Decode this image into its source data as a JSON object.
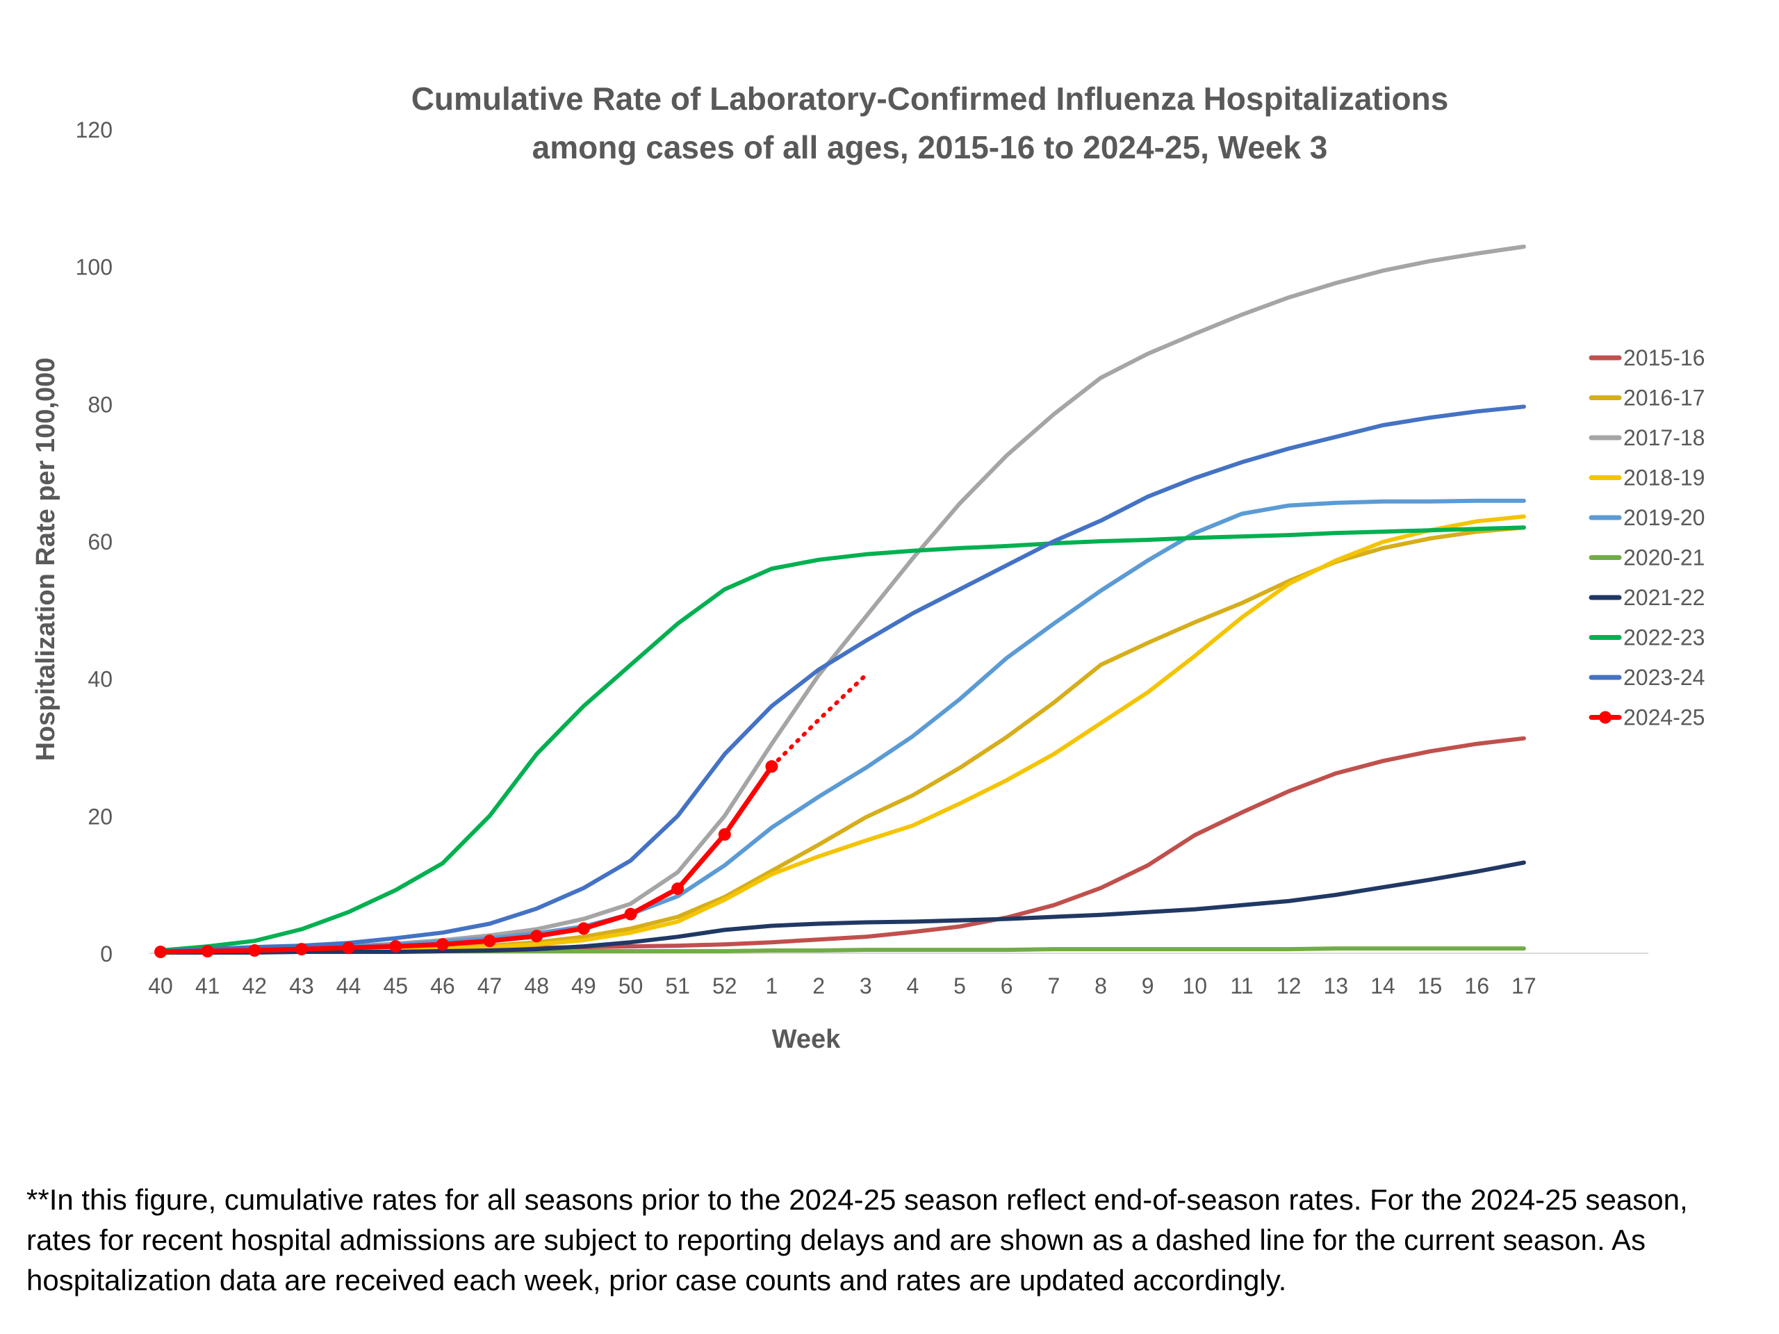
{
  "footnote": "**In this figure, cumulative rates for all seasons prior to the 2024-25 season reflect end-of-season rates. For the 2024-25 season, rates for recent hospital admissions are subject to reporting delays and are shown as a dashed line for the current season. As hospitalization data are received each week, prior case counts and rates are updated accordingly.",
  "chart_data": {
    "type": "line",
    "title": [
      "Cumulative Rate of Laboratory-Confirmed Influenza Hospitalizations",
      "among cases of all ages, 2015-16 to 2024-25, Week 3"
    ],
    "xlabel": "Week",
    "ylabel": "Hospitalization Rate per 100,000",
    "ylim": [
      0,
      120
    ],
    "yticks": [
      0,
      20,
      40,
      60,
      80,
      100,
      120
    ],
    "grid": false,
    "legend_position": "right",
    "categories": [
      "40",
      "41",
      "42",
      "43",
      "44",
      "45",
      "46",
      "47",
      "48",
      "49",
      "50",
      "51",
      "52",
      "1",
      "2",
      "3",
      "4",
      "5",
      "6",
      "7",
      "8",
      "9",
      "10",
      "11",
      "12",
      "13",
      "14",
      "15",
      "16",
      "17"
    ],
    "series": [
      {
        "name": "2015-16",
        "color": "#c0504d",
        "values": [
          0.2,
          0.3,
          0.4,
          0.4,
          0.5,
          0.6,
          0.6,
          0.7,
          0.8,
          0.9,
          1.0,
          1.1,
          1.3,
          1.6,
          2.0,
          2.4,
          3.1,
          3.9,
          5.2,
          7.0,
          9.5,
          12.8,
          17.2,
          20.5,
          23.6,
          26.2,
          28.0,
          29.4,
          30.5,
          31.3
        ]
      },
      {
        "name": "2016-17",
        "color": "#d6ae1b",
        "values": [
          0.2,
          0.3,
          0.4,
          0.5,
          0.6,
          0.7,
          0.9,
          1.1,
          1.6,
          2.4,
          3.6,
          5.3,
          8.2,
          12.0,
          15.8,
          19.8,
          23.0,
          27.0,
          31.5,
          36.5,
          42.0,
          45.2,
          48.2,
          51.0,
          54.2,
          57.0,
          59.0,
          60.4,
          61.4,
          62.0
        ]
      },
      {
        "name": "2017-18",
        "color": "#a5a5a5",
        "values": [
          0.2,
          0.3,
          0.5,
          0.7,
          1.0,
          1.4,
          1.9,
          2.6,
          3.5,
          5.0,
          7.2,
          11.8,
          20.0,
          30.5,
          40.5,
          49.0,
          57.5,
          65.5,
          72.5,
          78.5,
          83.8,
          87.3,
          90.2,
          93.0,
          95.5,
          97.6,
          99.4,
          100.8,
          101.9,
          102.9
        ]
      },
      {
        "name": "2018-19",
        "color": "#f5c400",
        "values": [
          0.2,
          0.3,
          0.4,
          0.4,
          0.5,
          0.6,
          0.7,
          0.9,
          1.3,
          1.9,
          3.0,
          4.6,
          7.8,
          11.5,
          14.1,
          16.4,
          18.6,
          21.8,
          25.2,
          29.0,
          33.5,
          38.0,
          43.3,
          48.9,
          53.8,
          57.2,
          59.9,
          61.6,
          62.9,
          63.6
        ]
      },
      {
        "name": "2019-20",
        "color": "#5b9bd5",
        "values": [
          0.2,
          0.4,
          0.6,
          0.8,
          1.0,
          1.3,
          1.7,
          2.2,
          2.9,
          3.9,
          5.7,
          8.3,
          12.8,
          18.3,
          22.8,
          27.0,
          31.6,
          37.0,
          43.0,
          48.0,
          52.8,
          57.2,
          61.2,
          64.0,
          65.2,
          65.6,
          65.8,
          65.8,
          65.9,
          65.9
        ]
      },
      {
        "name": "2020-21",
        "color": "#70ad47",
        "values": [
          0.1,
          0.1,
          0.2,
          0.2,
          0.2,
          0.2,
          0.3,
          0.3,
          0.3,
          0.3,
          0.3,
          0.3,
          0.3,
          0.4,
          0.4,
          0.5,
          0.5,
          0.5,
          0.5,
          0.6,
          0.6,
          0.6,
          0.6,
          0.6,
          0.6,
          0.7,
          0.7,
          0.7,
          0.7,
          0.7
        ]
      },
      {
        "name": "2021-22",
        "color": "#203864",
        "values": [
          0.1,
          0.1,
          0.1,
          0.2,
          0.2,
          0.2,
          0.3,
          0.4,
          0.6,
          1.0,
          1.6,
          2.4,
          3.4,
          4.0,
          4.3,
          4.5,
          4.6,
          4.8,
          5.0,
          5.3,
          5.6,
          6.0,
          6.4,
          7.0,
          7.6,
          8.5,
          9.6,
          10.7,
          11.9,
          13.2
        ]
      },
      {
        "name": "2022-23",
        "color": "#00b050",
        "values": [
          0.4,
          1.0,
          1.8,
          3.5,
          6.0,
          9.2,
          13.1,
          20.0,
          29.0,
          36.0,
          42.0,
          48.0,
          53.0,
          56.0,
          57.3,
          58.1,
          58.6,
          59.0,
          59.3,
          59.7,
          60.0,
          60.2,
          60.5,
          60.7,
          60.9,
          61.2,
          61.4,
          61.6,
          61.8,
          62.0
        ]
      },
      {
        "name": "2023-24",
        "color": "#4472c4",
        "values": [
          0.3,
          0.6,
          0.9,
          1.1,
          1.5,
          2.2,
          3.0,
          4.3,
          6.5,
          9.5,
          13.5,
          20.0,
          29.0,
          36.0,
          41.3,
          45.5,
          49.5,
          53.0,
          56.5,
          60.0,
          63.0,
          66.5,
          69.2,
          71.5,
          73.5,
          75.2,
          76.9,
          78.0,
          78.9,
          79.6
        ]
      },
      {
        "name": "2024-25",
        "color": "#ff0000",
        "markers": true,
        "values": [
          0.2,
          0.3,
          0.4,
          0.6,
          0.8,
          1.0,
          1.3,
          1.8,
          2.5,
          3.6,
          5.7,
          9.4,
          17.3,
          27.2,
          null,
          null,
          null,
          null,
          null,
          null,
          null,
          null,
          null,
          null,
          null,
          null,
          null,
          null,
          null,
          null
        ],
        "projected_dotted": [
          null,
          null,
          null,
          null,
          null,
          null,
          null,
          null,
          null,
          null,
          null,
          null,
          null,
          27.2,
          34.0,
          40.5,
          null,
          null,
          null,
          null,
          null,
          null,
          null,
          null,
          null,
          null,
          null,
          null,
          null,
          null
        ]
      }
    ]
  }
}
